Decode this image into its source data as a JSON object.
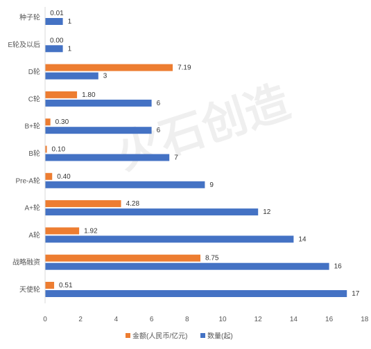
{
  "chart_data": {
    "type": "bar",
    "orientation": "horizontal",
    "categories": [
      "种子轮",
      "E轮及以后",
      "D轮",
      "C轮",
      "B+轮",
      "B轮",
      "Pre-A轮",
      "A+轮",
      "A轮",
      "战略融资",
      "天使轮"
    ],
    "series": [
      {
        "name": "金额(人民币/亿元)",
        "color": "#ED7D31",
        "values": [
          0.01,
          0.0,
          7.19,
          1.8,
          0.3,
          0.1,
          0.4,
          4.28,
          1.92,
          8.75,
          0.51
        ],
        "labels": [
          "0.01",
          "0.00",
          "7.19",
          "1.80",
          "0.30",
          "0.10",
          "0.40",
          "4.28",
          "1.92",
          "8.75",
          "0.51"
        ]
      },
      {
        "name": "数量(起)",
        "color": "#4472C4",
        "values": [
          1,
          1,
          3,
          6,
          6,
          7,
          9,
          12,
          14,
          16,
          17
        ],
        "labels": [
          "1",
          "1",
          "3",
          "6",
          "6",
          "7",
          "9",
          "12",
          "14",
          "16",
          "17"
        ]
      }
    ],
    "xlim": [
      0,
      18
    ],
    "xticks": [
      "0",
      "2",
      "4",
      "6",
      "8",
      "10",
      "12",
      "14",
      "16",
      "18"
    ],
    "grid": false,
    "legend_position": "bottom",
    "watermark": "火石创造"
  }
}
